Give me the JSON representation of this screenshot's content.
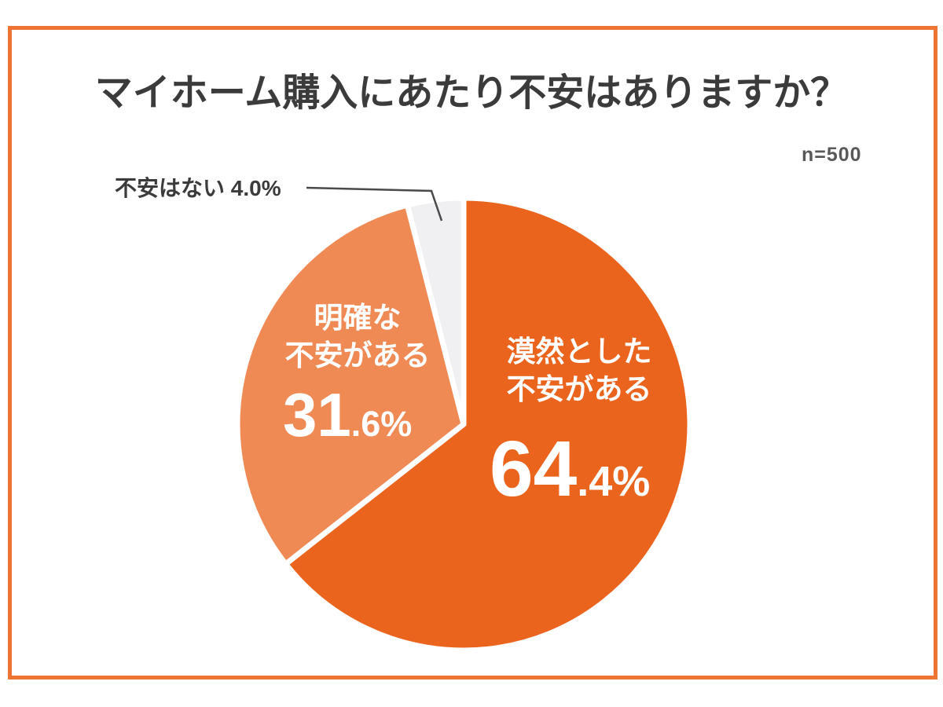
{
  "frame": {
    "border_color": "#EE7433",
    "background": "#FFFFFF"
  },
  "header": {
    "title": "マイホーム購入にあたり不安はありますか？",
    "sample_size_label": "n=500"
  },
  "chart_data": {
    "type": "pie",
    "title": "マイホーム購入にあたり不安はありますか？",
    "sample_size": 500,
    "start_angle_deg": 0,
    "direction": "clockwise",
    "legend_position": "none",
    "slices": [
      {
        "label": "漠然とした不安がある",
        "value": 64.4,
        "color": "#EB641E",
        "label_color": "#FFFFFF"
      },
      {
        "label": "明確な不安がある",
        "value": 31.6,
        "color": "#F08A55",
        "label_color": "#FFFFFF"
      },
      {
        "label": "不安はない",
        "value": 4.0,
        "color": "#F0F0F2",
        "label_color": "#3B3B3B",
        "callout": true
      }
    ],
    "separator_color": "#FFFFFF"
  },
  "pie_labels": {
    "right": {
      "line1": "漠然とした",
      "line2": "不安がある",
      "big": "64",
      "small": ".4%"
    },
    "left": {
      "line1": "明確な",
      "line2": "不安がある",
      "big": "31",
      "small": ".6%"
    },
    "callout": "不安はない 4.0%"
  },
  "colors": {
    "title_text": "#3B3B3B",
    "n_text": "#595959",
    "callout_line": "#4A4A4A"
  }
}
